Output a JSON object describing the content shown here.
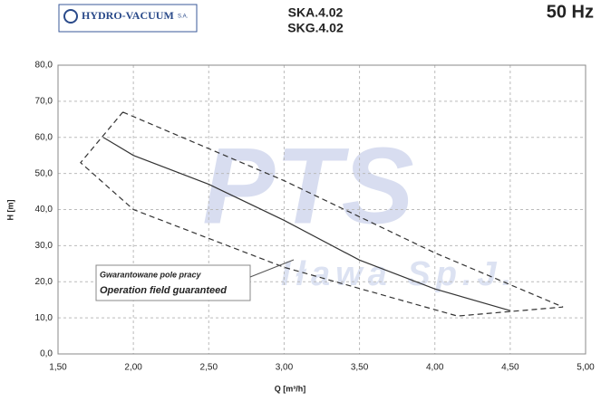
{
  "chart_data": {
    "type": "line",
    "logo": "HYDRO-VACUUM",
    "logo_suffix": "S.A.",
    "title": "SKA.4.02",
    "subtitle": "SKG.4.02",
    "frequency": "50 Hz",
    "xlabel": "Q [m³/h]",
    "ylabel": "H [m]",
    "xlim": [
      1.5,
      5.0
    ],
    "xticks": [
      {
        "value": 1.5,
        "label": "1,50"
      },
      {
        "value": 2.0,
        "label": "2,00"
      },
      {
        "value": 2.5,
        "label": "2,50"
      },
      {
        "value": 3.0,
        "label": "3,00"
      },
      {
        "value": 3.5,
        "label": "3,50"
      },
      {
        "value": 4.0,
        "label": "4,00"
      },
      {
        "value": 4.5,
        "label": "4,50"
      },
      {
        "value": 5.0,
        "label": "5,00"
      }
    ],
    "ylim": [
      0,
      80
    ],
    "yticks": [
      {
        "value": 0,
        "label": "0,0"
      },
      {
        "value": 10,
        "label": "10,0"
      },
      {
        "value": 20,
        "label": "20,0"
      },
      {
        "value": 30,
        "label": "30,0"
      },
      {
        "value": 40,
        "label": "40,0"
      },
      {
        "value": 50,
        "label": "50,0"
      },
      {
        "value": 60,
        "label": "60,0"
      },
      {
        "value": 70,
        "label": "70,0"
      },
      {
        "value": 80,
        "label": "80,0"
      }
    ],
    "grid": true,
    "series": [
      {
        "color": "#333333",
        "dashed": false,
        "x": [
          1.8,
          2.0,
          2.5,
          3.0,
          3.5,
          4.0,
          4.5
        ],
        "values": [
          60,
          55,
          47,
          37,
          26,
          18,
          12
        ]
      },
      {
        "color": "#333333",
        "dashed": true,
        "x": [
          1.93,
          3.0,
          4.0,
          4.85,
          4.15,
          3.0,
          2.0,
          1.65,
          1.93
        ],
        "values": [
          67,
          48,
          28,
          13,
          10.5,
          24,
          40,
          53,
          67
        ]
      }
    ],
    "annotation": [
      "Gwarantowane pole pracy",
      "Operation field guaranteed"
    ],
    "watermark": [
      "PTS",
      "Iława Sp.J."
    ]
  }
}
